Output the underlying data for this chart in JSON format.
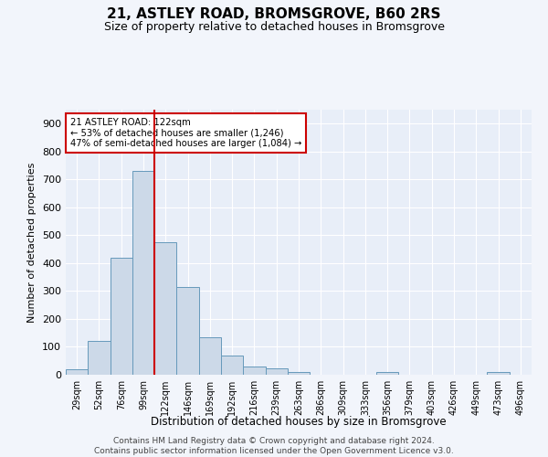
{
  "title": "21, ASTLEY ROAD, BROMSGROVE, B60 2RS",
  "subtitle": "Size of property relative to detached houses in Bromsgrove",
  "xlabel": "Distribution of detached houses by size in Bromsgrove",
  "ylabel": "Number of detached properties",
  "bin_labels": [
    "29sqm",
    "52sqm",
    "76sqm",
    "99sqm",
    "122sqm",
    "146sqm",
    "169sqm",
    "192sqm",
    "216sqm",
    "239sqm",
    "263sqm",
    "286sqm",
    "309sqm",
    "333sqm",
    "356sqm",
    "379sqm",
    "403sqm",
    "426sqm",
    "449sqm",
    "473sqm",
    "496sqm"
  ],
  "bar_heights": [
    20,
    122,
    420,
    730,
    475,
    315,
    135,
    68,
    28,
    22,
    10,
    0,
    0,
    0,
    10,
    0,
    0,
    0,
    0,
    10,
    0
  ],
  "bar_color": "#ccd9e8",
  "bar_edge_color": "#6699bb",
  "red_line_x": 3.5,
  "annotation_title": "21 ASTLEY ROAD: 122sqm",
  "annotation_line1": "← 53% of detached houses are smaller (1,246)",
  "annotation_line2": "47% of semi-detached houses are larger (1,084) →",
  "annotation_box_color": "#ffffff",
  "annotation_box_edge": "#cc0000",
  "red_line_color": "#cc0000",
  "ylim": [
    0,
    950
  ],
  "yticks": [
    0,
    100,
    200,
    300,
    400,
    500,
    600,
    700,
    800,
    900
  ],
  "footer": "Contains HM Land Registry data © Crown copyright and database right 2024.\nContains public sector information licensed under the Open Government Licence v3.0.",
  "bg_color": "#f2f5fb",
  "plot_bg_color": "#e8eef8"
}
